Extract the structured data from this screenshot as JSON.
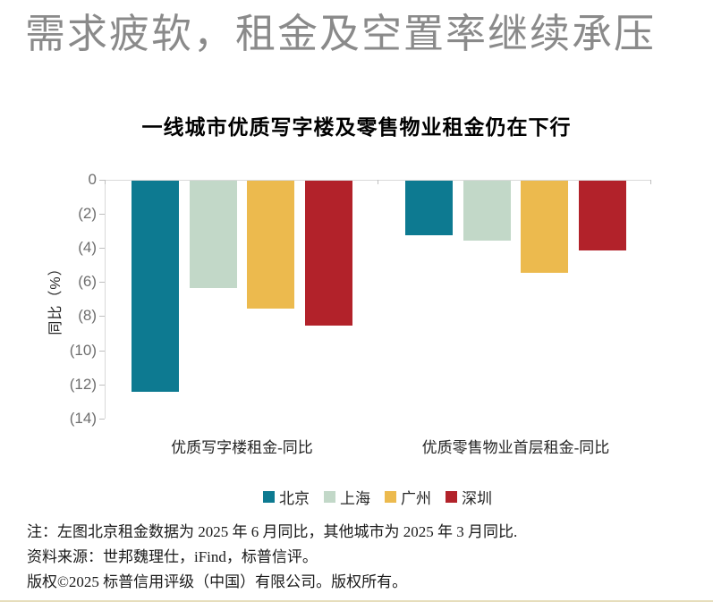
{
  "page": {
    "main_title": "需求疲软，租金及空置率继续承压"
  },
  "chart": {
    "title": "一线城市优质写字楼及零售物业租金仍在下行",
    "y_axis_title": "同比（%）"
  },
  "chart_data": {
    "type": "bar",
    "title": "一线城市优质写字楼及零售物业租金仍在下行",
    "categories": [
      "优质写字楼租金-同比",
      "优质零售物业首层租金-同比"
    ],
    "series": [
      {
        "name": "北京",
        "color": "#0d7a91",
        "values": [
          -12.4,
          -3.2
        ]
      },
      {
        "name": "上海",
        "color": "#c2d8c8",
        "values": [
          -6.3,
          -3.5
        ]
      },
      {
        "name": "广州",
        "color": "#ecba4e",
        "values": [
          -7.5,
          -5.4
        ]
      },
      {
        "name": "深圳",
        "color": "#b2222a",
        "values": [
          -8.5,
          -4.1
        ]
      }
    ],
    "ylabel": "同比（%）",
    "ylim": [
      -14,
      0
    ],
    "y_tick_step": 2,
    "y_tick_labels": [
      "0",
      "(2)",
      "(4)",
      "(6)",
      "(8)",
      "(10)",
      "(12)",
      "(14)"
    ],
    "grid": false,
    "legend_position": "bottom",
    "negative_format": "parentheses"
  },
  "footer": {
    "note": "注：左图北京租金数据为 2025 年 6 月同比，其他城市为 2025 年 3 月同比.",
    "source": "资料来源：世邦魏理仕，iFind，标普信评。",
    "copyright": "版权©2025 标普信用评级（中国）有限公司。版权所有。"
  }
}
